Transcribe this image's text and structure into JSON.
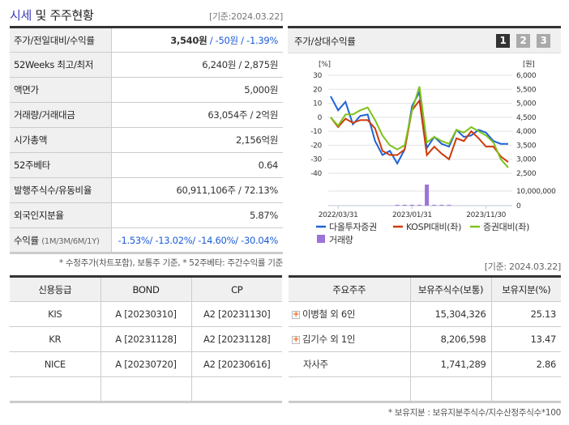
{
  "header": {
    "title_a": "시세",
    "title_b": " 및 주주현황",
    "base_date": "[기준:2024.03.22]"
  },
  "summary": [
    {
      "label": "주가/전일대비/수익률",
      "price": "3,540원",
      "sep1": " / ",
      "change": "-50원",
      "sep2": " / ",
      "rate": "-1.39%"
    },
    {
      "label": "52Weeks 최고/최저",
      "value": "6,240원 / 2,875원"
    },
    {
      "label": "액면가",
      "value": "5,000원"
    },
    {
      "label": "거래량/거래대금",
      "value": "63,054주 / 2억원"
    },
    {
      "label": "시가총액",
      "value": "2,156억원"
    },
    {
      "label": "52주베타",
      "value": "0.64"
    },
    {
      "label": "발행주식수/유동비율",
      "value": "60,911,106주 / 72.13%"
    },
    {
      "label": "외국인지분율",
      "value": "5.87%"
    },
    {
      "label": "수익률",
      "sub": "(1M/3M/6M/1Y)",
      "value": "-1.53%/ -13.02%/ -14.60%/ -30.04%"
    }
  ],
  "summary_note": "* 수정주가(차트포함), 보통주 기준, * 52주베타: 주간수익률 기준",
  "chart_panel": {
    "title": "주가/상대수익률",
    "pages": [
      "1",
      "2",
      "3"
    ],
    "active_page": "1"
  },
  "chart_data": {
    "type": "line",
    "left_unit": "[%]",
    "right_unit": "[원]",
    "left_ticks": [
      "30",
      "20",
      "10",
      "0",
      "-10",
      "-20",
      "-30",
      "-40"
    ],
    "left_range": [
      -40,
      30
    ],
    "right_ticks": [
      "6,000",
      "5,500",
      "5,000",
      "4,500",
      "4,000",
      "3,500",
      "3,000",
      "2,500"
    ],
    "volume_ticks": [
      "10,000,000",
      "0"
    ],
    "volume_range": [
      0,
      14000000
    ],
    "x_labels": [
      "2022/03/31",
      "2023/01/31",
      "2023/11/30"
    ],
    "x_label_index": [
      1,
      11,
      21
    ],
    "series": [
      {
        "name": "다올투자증권",
        "color": "#1f63d6",
        "values": [
          15,
          5,
          11,
          -5,
          1,
          2,
          -17,
          -27,
          -24,
          -33,
          -23,
          8,
          18,
          -22,
          -14,
          -19,
          -21,
          -9,
          -14,
          -13,
          -9,
          -11,
          -17,
          -19,
          -19
        ]
      },
      {
        "name": "KOSPI대비(좌)",
        "color": "#d13a0a",
        "values": [
          0,
          -7,
          -1,
          -4,
          -2,
          -2,
          -8,
          -24,
          -27,
          -27,
          -23,
          5,
          12,
          -27,
          -21,
          -26,
          -30,
          -15,
          -17,
          -10,
          -15,
          -21,
          -21,
          -28,
          -32
        ]
      },
      {
        "name": "증권대비(좌)",
        "color": "#7fc21b",
        "values": [
          0,
          -6,
          2,
          2,
          5,
          7,
          -2,
          -13,
          -20,
          -23,
          -20,
          5,
          22,
          -18,
          -14,
          -17,
          -19,
          -9,
          -11,
          -7,
          -10,
          -13,
          -18,
          -30,
          -36
        ]
      }
    ],
    "volume": {
      "name": "거래량",
      "color": "#9b74d8",
      "values": [
        0,
        0,
        0,
        0,
        0,
        0,
        0,
        0,
        0,
        300000,
        300000,
        300000,
        300000,
        14000000,
        300000,
        300000,
        300000,
        0,
        0,
        0,
        0,
        0,
        0,
        0,
        0
      ]
    }
  },
  "credit": {
    "headers": [
      "신용등급",
      "BOND",
      "CP"
    ],
    "rows": [
      [
        "KIS",
        "A  [20230310]",
        "A2  [20231130]"
      ],
      [
        "KR",
        "A  [20231128]",
        "A2  [20231128]"
      ],
      [
        "NICE",
        "A  [20230720]",
        "A2  [20230616]"
      ],
      [
        "",
        "",
        ""
      ]
    ]
  },
  "holders": {
    "base_date": "[기준: 2024.03.22]",
    "headers": [
      "주요주주",
      "보유주식수(보통)",
      "보유지분(%)"
    ],
    "rows": [
      {
        "name": "이병철 외 6인",
        "expand": true,
        "shares": "15,304,326",
        "pct": "25.13"
      },
      {
        "name": "김기수 외 1인",
        "expand": true,
        "shares": "8,206,598",
        "pct": "13.47"
      },
      {
        "name": "자사주",
        "expand": false,
        "shares": "1,741,289",
        "pct": "2.86"
      },
      {
        "name": "",
        "expand": false,
        "shares": "",
        "pct": ""
      }
    ]
  },
  "holders_note": "* 보유지분 : 보유지분주식수/지수산정주식수*100"
}
